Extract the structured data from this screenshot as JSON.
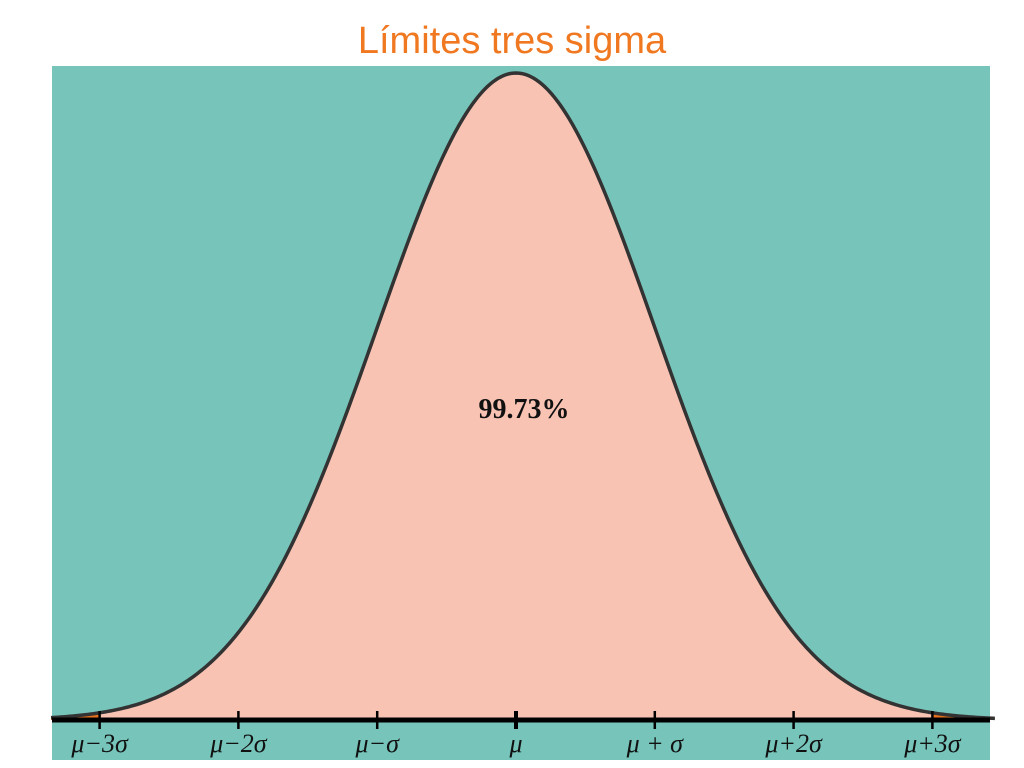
{
  "title": "Límites tres sigma",
  "chart_data": {
    "type": "area",
    "title": "Límites tres sigma",
    "distribution": "normal",
    "xlim": [
      -3.35,
      3.45
    ],
    "x_ticks": [
      -3,
      -2,
      -1,
      0,
      1,
      2,
      3
    ],
    "tick_labels": [
      "μ−3σ",
      "μ−2σ",
      "μ−σ",
      "μ",
      "μ + σ",
      "μ+2σ",
      "μ+3σ"
    ],
    "shaded_region": {
      "from": -3,
      "to": 3,
      "label": "99.73%"
    },
    "tail_regions": [
      {
        "from": -3.35,
        "to": -3
      },
      {
        "from": 3,
        "to": 3.45
      }
    ]
  },
  "colors": {
    "background": "#76c4ba",
    "center_fill": "#f9c3b3",
    "tail_fill": "#e8721c",
    "curve": "#333333",
    "axis": "#000000",
    "title": "#f07820"
  }
}
